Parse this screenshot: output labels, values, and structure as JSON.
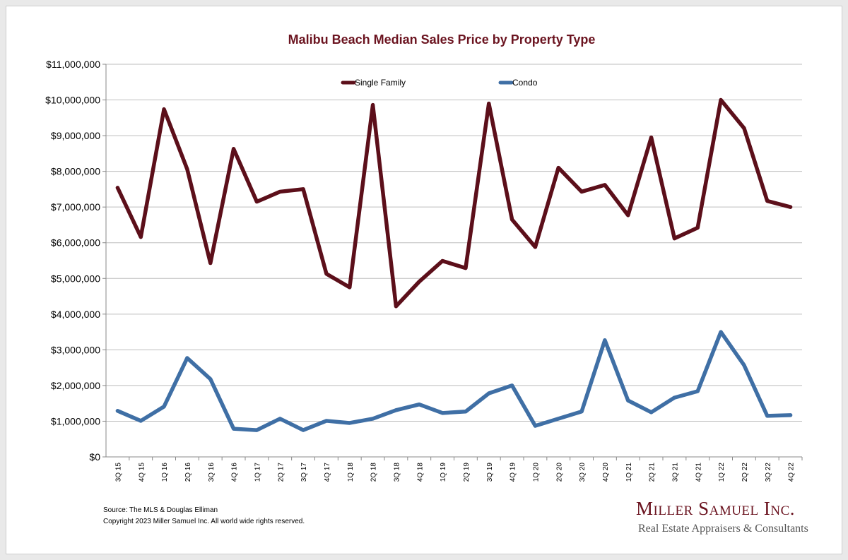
{
  "chart_data": {
    "type": "line",
    "title": "Malibu Beach Median Sales Price by Property Type",
    "xlabel": "",
    "ylabel": "",
    "ylim": [
      0,
      11000000
    ],
    "yticks": [
      "$0",
      "$1,000,000",
      "$2,000,000",
      "$3,000,000",
      "$4,000,000",
      "$5,000,000",
      "$6,000,000",
      "$7,000,000",
      "$8,000,000",
      "$9,000,000",
      "$10,000,000",
      "$11,000,000"
    ],
    "grid": true,
    "legend_position": "top-center",
    "categories": [
      "3Q 15",
      "4Q 15",
      "1Q 16",
      "2Q 16",
      "3Q 16",
      "4Q 16",
      "1Q 17",
      "2Q 17",
      "3Q 17",
      "4Q 17",
      "1Q 18",
      "2Q 18",
      "3Q 18",
      "4Q 18",
      "1Q 19",
      "2Q 19",
      "3Q 19",
      "4Q 19",
      "1Q 20",
      "2Q 20",
      "3Q 20",
      "4Q 20",
      "1Q 21",
      "2Q 21",
      "3Q 21",
      "4Q 21",
      "1Q 22",
      "2Q 22",
      "3Q 22",
      "4Q 22"
    ],
    "series": [
      {
        "name": "Single Family",
        "color": "#5c0f1a",
        "values": [
          7540000,
          6160000,
          9740000,
          8060000,
          5430000,
          8630000,
          7150000,
          7430000,
          7500000,
          5130000,
          4750000,
          9860000,
          4220000,
          4910000,
          5490000,
          5290000,
          9900000,
          6650000,
          5880000,
          8100000,
          7430000,
          7620000,
          6770000,
          8950000,
          6120000,
          6420000,
          10000000,
          9210000,
          7170000,
          7000000
        ]
      },
      {
        "name": "Condo",
        "color": "#3f6fa5",
        "values": [
          1290000,
          1010000,
          1410000,
          2770000,
          2180000,
          790000,
          750000,
          1070000,
          750000,
          1010000,
          950000,
          1070000,
          1310000,
          1470000,
          1230000,
          1270000,
          1780000,
          2000000,
          870000,
          1070000,
          1270000,
          3270000,
          1580000,
          1250000,
          1660000,
          1840000,
          3500000,
          2570000,
          1150000,
          1170000
        ]
      }
    ]
  },
  "footer": {
    "source": "Source: The MLS & Douglas Elliman",
    "copyright": "Copyright 2023 Miller Samuel Inc.  All world wide rights reserved.",
    "logo_name": "Miller Samuel Inc.",
    "logo_tagline": "Real Estate Appraisers & Consultants"
  }
}
